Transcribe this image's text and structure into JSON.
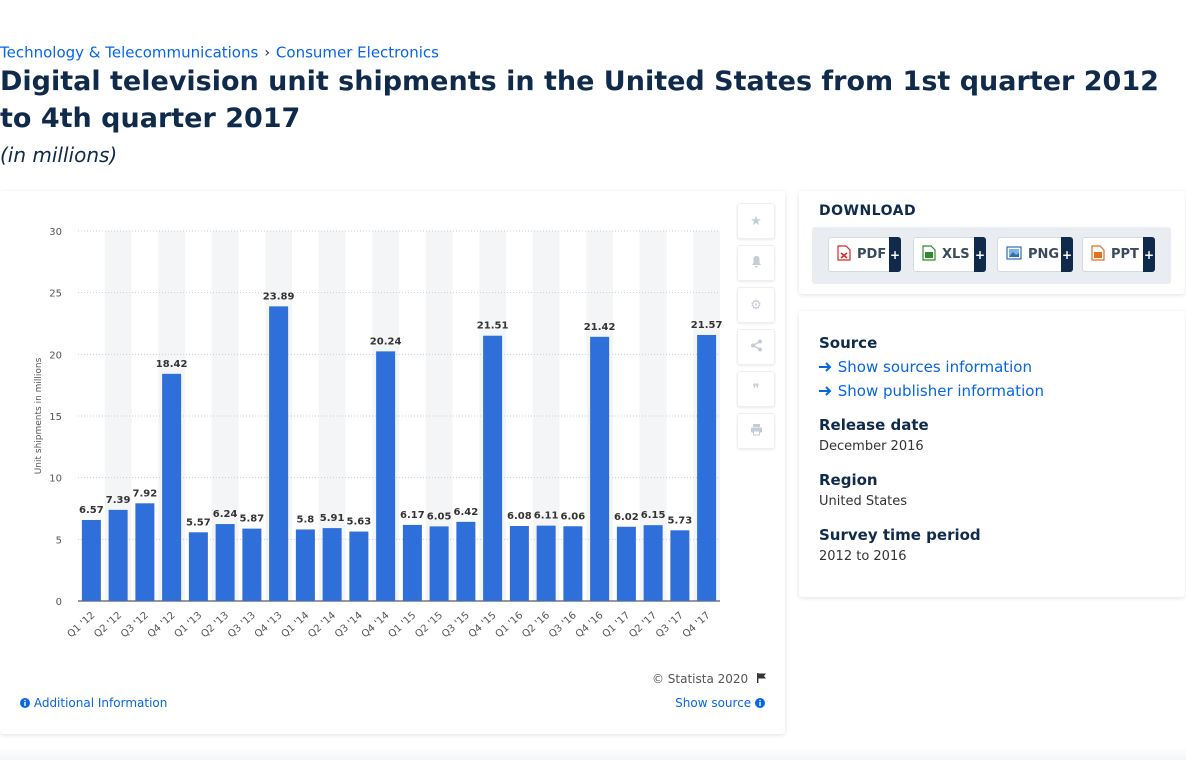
{
  "breadcrumb": {
    "items": [
      "Technology & Telecommunications",
      "Consumer Electronics"
    ],
    "separator": "›"
  },
  "title": "Digital television unit shipments in the United States from 1st quarter 2012 to 4th quarter 2017",
  "subtitle": "(in millions)",
  "chart_data": {
    "type": "bar",
    "categories": [
      "Q1 '12",
      "Q2 '12",
      "Q3 '12",
      "Q4 '12",
      "Q1 '13",
      "Q2 '13",
      "Q3 '13",
      "Q4 '13",
      "Q1 '14",
      "Q2 '14",
      "Q3 '14",
      "Q4 '14",
      "Q1 '15",
      "Q2 '15",
      "Q3 '15",
      "Q4 '15",
      "Q1 '16",
      "Q2 '16",
      "Q3 '16",
      "Q4 '16",
      "Q1 '17",
      "Q2 '17",
      "Q3 '17",
      "Q4 '17"
    ],
    "values": [
      6.57,
      7.39,
      7.92,
      18.42,
      5.57,
      6.24,
      5.87,
      23.89,
      5.8,
      5.91,
      5.63,
      20.24,
      6.17,
      6.05,
      6.42,
      21.51,
      6.08,
      6.11,
      6.06,
      21.42,
      6.02,
      6.15,
      5.73,
      21.57
    ],
    "value_labels": [
      "6.57",
      "7.39",
      "7.92",
      "18.42",
      "5.57",
      "6.24",
      "5.87",
      "23.89",
      "5.8",
      "5.91",
      "5.63",
      "20.24",
      "6.17",
      "6.05",
      "6.42",
      "21.51",
      "6.08",
      "6.11",
      "6.06",
      "21.42",
      "6.02",
      "6.15",
      "5.73",
      "21.57"
    ],
    "ylabel": "Unit shipments in millions",
    "xlabel": "",
    "ylim": [
      0,
      30
    ],
    "yticks": [
      0,
      5,
      10,
      15,
      20,
      25,
      30
    ],
    "grid": true,
    "bar_color": "#2e6fd9",
    "band_color": "#f4f5f7"
  },
  "toolbar": {
    "icons": [
      "star-icon",
      "bell-icon",
      "gear-icon",
      "share-icon",
      "quote-icon",
      "print-icon"
    ],
    "glyphs": [
      "★",
      "🔔",
      "⚙",
      "⋖",
      "❞",
      "⎙"
    ]
  },
  "chart_footer": {
    "copyright": "© Statista 2020",
    "additional_info": "Additional Information",
    "show_source": "Show source"
  },
  "download": {
    "title": "DOWNLOAD",
    "buttons": [
      {
        "label": "PDF",
        "color": "#d6282d"
      },
      {
        "label": "XLS",
        "color": "#2e8b2e"
      },
      {
        "label": "PNG",
        "color": "#2d6db3"
      },
      {
        "label": "PPT",
        "color": "#e2701e"
      }
    ],
    "plus": "+"
  },
  "info": {
    "source_heading": "Source",
    "show_sources": "Show sources information",
    "show_publisher": "Show publisher information",
    "release_heading": "Release date",
    "release_value": "December 2016",
    "region_heading": "Region",
    "region_value": "United States",
    "survey_heading": "Survey time period",
    "survey_value": "2012 to 2016"
  }
}
